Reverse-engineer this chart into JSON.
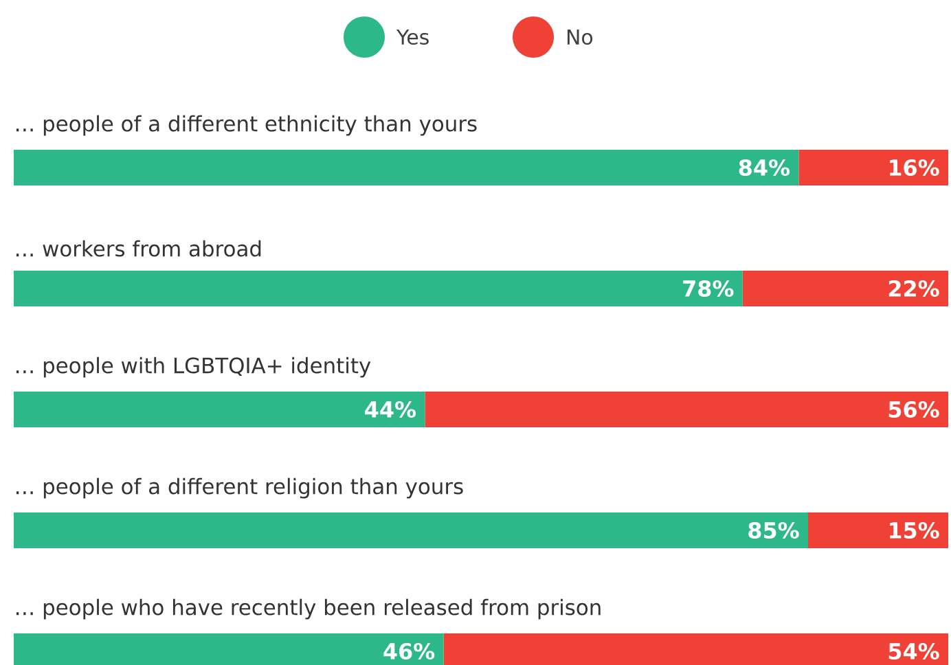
{
  "chart_data": {
    "type": "bar",
    "orientation": "horizontal",
    "stacked": true,
    "legend": "top",
    "xlim": [
      0,
      100
    ],
    "categories": [
      "… people of a different ethnicity than yours",
      "… workers from abroad",
      "… people with LGBTQIA+ identity",
      "… people of a different religion than yours",
      "… people who have recently been released from prison"
    ],
    "series": [
      {
        "name": "Yes",
        "color": "#2db88a",
        "values": [
          84,
          78,
          44,
          85,
          46
        ],
        "value_labels": [
          "84%",
          "78%",
          "44%",
          "85%",
          "46%"
        ]
      },
      {
        "name": "No",
        "color": "#ef4136",
        "values": [
          16,
          22,
          56,
          15,
          54
        ],
        "value_labels": [
          "16%",
          "22%",
          "56%",
          "15%",
          "54%"
        ]
      }
    ]
  }
}
